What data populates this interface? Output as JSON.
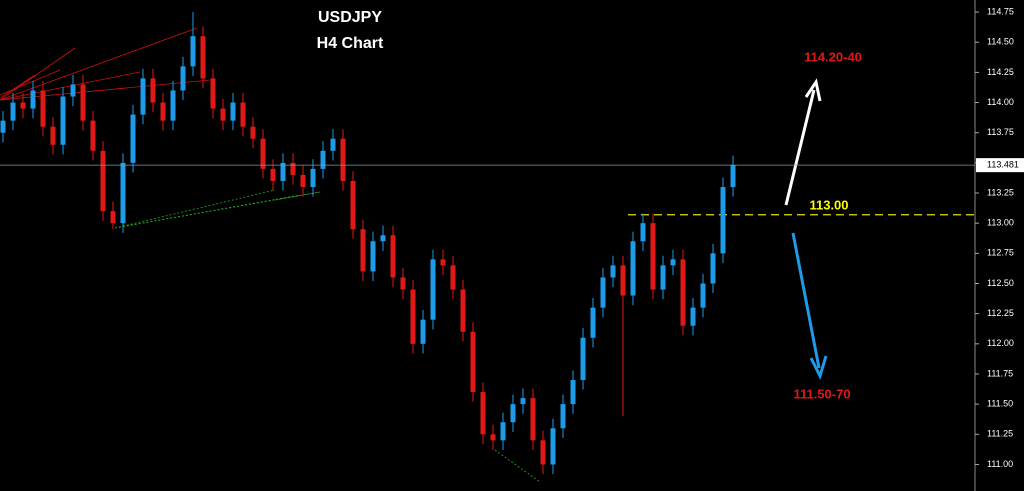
{
  "chart_data": {
    "type": "candlestick",
    "title": "USDJPY",
    "subtitle": "H4 Chart",
    "open": [
      113.75,
      113.85,
      114.0,
      113.95,
      114.1,
      113.8,
      113.65,
      114.05,
      114.15,
      113.85,
      113.6,
      113.1,
      113.0,
      113.5,
      113.9,
      114.2,
      114.0,
      113.85,
      114.1,
      114.3,
      114.55,
      114.2,
      113.95,
      113.85,
      114.0,
      113.8,
      113.7,
      113.45,
      113.35,
      113.5,
      113.4,
      113.3,
      113.45,
      113.6,
      113.7,
      113.35,
      112.95,
      112.6,
      112.85,
      112.9,
      112.55,
      112.45,
      112.0,
      112.2,
      112.7,
      112.65,
      112.45,
      112.1,
      111.6,
      111.25,
      111.2,
      111.35,
      111.5,
      111.55,
      111.2,
      111.0,
      111.3,
      111.5,
      111.7,
      112.05,
      112.3,
      112.55,
      112.65,
      112.4,
      112.85,
      113.0,
      112.45,
      112.65,
      112.7,
      112.15,
      112.3,
      112.5,
      112.75,
      113.3
    ],
    "high": [
      113.93,
      114.08,
      114.08,
      114.18,
      114.18,
      113.88,
      114.13,
      114.23,
      114.23,
      113.93,
      113.68,
      113.18,
      113.58,
      113.98,
      114.28,
      114.28,
      114.08,
      114.18,
      114.38,
      114.75,
      114.63,
      114.28,
      114.03,
      114.08,
      114.08,
      113.88,
      113.78,
      113.53,
      113.58,
      113.58,
      113.48,
      113.53,
      113.68,
      113.78,
      113.78,
      113.43,
      113.03,
      112.93,
      112.98,
      112.98,
      112.63,
      112.53,
      112.28,
      112.78,
      112.78,
      112.73,
      112.53,
      112.18,
      111.68,
      111.33,
      111.43,
      111.58,
      111.63,
      111.63,
      111.28,
      111.38,
      111.58,
      111.78,
      112.13,
      112.38,
      112.63,
      112.73,
      112.73,
      112.93,
      113.08,
      113.08,
      112.73,
      112.78,
      112.78,
      112.38,
      112.58,
      112.83,
      113.38,
      113.56
    ],
    "low": [
      113.67,
      113.77,
      113.87,
      113.87,
      113.72,
      113.57,
      113.57,
      113.97,
      113.77,
      113.52,
      113.02,
      112.95,
      112.92,
      113.42,
      113.82,
      113.92,
      113.77,
      113.77,
      114.02,
      114.22,
      114.12,
      113.87,
      113.77,
      113.77,
      113.72,
      113.62,
      113.37,
      113.27,
      113.27,
      113.32,
      113.22,
      113.22,
      113.37,
      113.52,
      113.27,
      112.87,
      112.52,
      112.52,
      112.77,
      112.47,
      112.37,
      111.92,
      111.92,
      112.12,
      112.57,
      112.37,
      112.02,
      111.52,
      111.17,
      111.12,
      111.12,
      111.27,
      111.42,
      111.12,
      110.92,
      110.92,
      111.22,
      111.42,
      111.62,
      111.97,
      112.22,
      112.47,
      111.4,
      112.32,
      112.77,
      112.37,
      112.37,
      112.57,
      112.07,
      112.07,
      112.22,
      112.42,
      112.67,
      113.22
    ],
    "close": [
      113.85,
      114.0,
      113.95,
      114.1,
      113.8,
      113.65,
      114.05,
      114.15,
      113.85,
      113.6,
      113.1,
      113.0,
      113.5,
      113.9,
      114.2,
      114.0,
      113.85,
      114.1,
      114.3,
      114.55,
      114.2,
      113.95,
      113.85,
      114.0,
      113.8,
      113.7,
      113.45,
      113.35,
      113.5,
      113.4,
      113.3,
      113.45,
      113.6,
      113.7,
      113.35,
      112.95,
      112.6,
      112.85,
      112.9,
      112.55,
      112.45,
      112.0,
      112.2,
      112.7,
      112.65,
      112.45,
      112.1,
      111.6,
      111.25,
      111.2,
      111.35,
      111.5,
      111.55,
      111.2,
      111.0,
      111.3,
      111.5,
      111.7,
      112.05,
      112.3,
      112.55,
      112.65,
      112.4,
      112.85,
      113.0,
      112.45,
      112.65,
      112.7,
      112.15,
      112.3,
      112.5,
      112.75,
      113.3,
      113.48
    ],
    "up_color": "#1e9be9",
    "down_color": "#e01818",
    "ylim": [
      110.78,
      114.85
    ],
    "yticks": [
      114.75,
      {
        "value": 114.5,
        "label": "114.50"
      },
      114.25,
      {
        "value": 114.0,
        "label": "114.00"
      },
      113.75,
      {
        "value": 113.5,
        "label": "113.50"
      },
      113.25,
      {
        "value": 113.0,
        "label": "113.00"
      },
      112.75,
      {
        "value": 112.5,
        "label": "112.50"
      },
      112.25,
      {
        "value": 112.0,
        "label": "112.00"
      },
      111.75,
      {
        "value": 111.5,
        "label": "111.50"
      },
      111.25,
      {
        "value": 111.0,
        "label": "111.00"
      }
    ],
    "last_price": 113.481,
    "level_line": 113.07,
    "annotations": [
      "114.20-40",
      "113.00",
      "111.50-70"
    ]
  }
}
